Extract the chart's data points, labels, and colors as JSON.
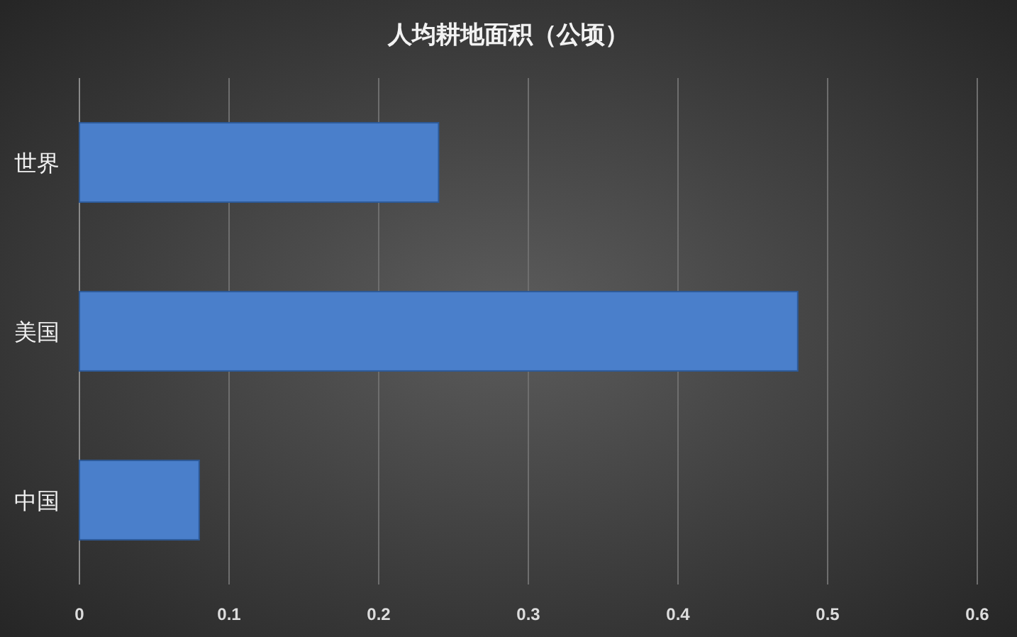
{
  "chart_data": {
    "type": "bar",
    "orientation": "horizontal",
    "title": "人均耕地面积（公顷）",
    "categories": [
      "世界",
      "美国",
      "中国"
    ],
    "values": [
      0.24,
      0.48,
      0.08
    ],
    "color": "#4a7fcb",
    "xlim": [
      0,
      0.6
    ],
    "xticks": [
      0,
      0.1,
      0.2,
      0.3,
      0.4,
      0.5,
      0.6
    ],
    "grid": "x"
  }
}
